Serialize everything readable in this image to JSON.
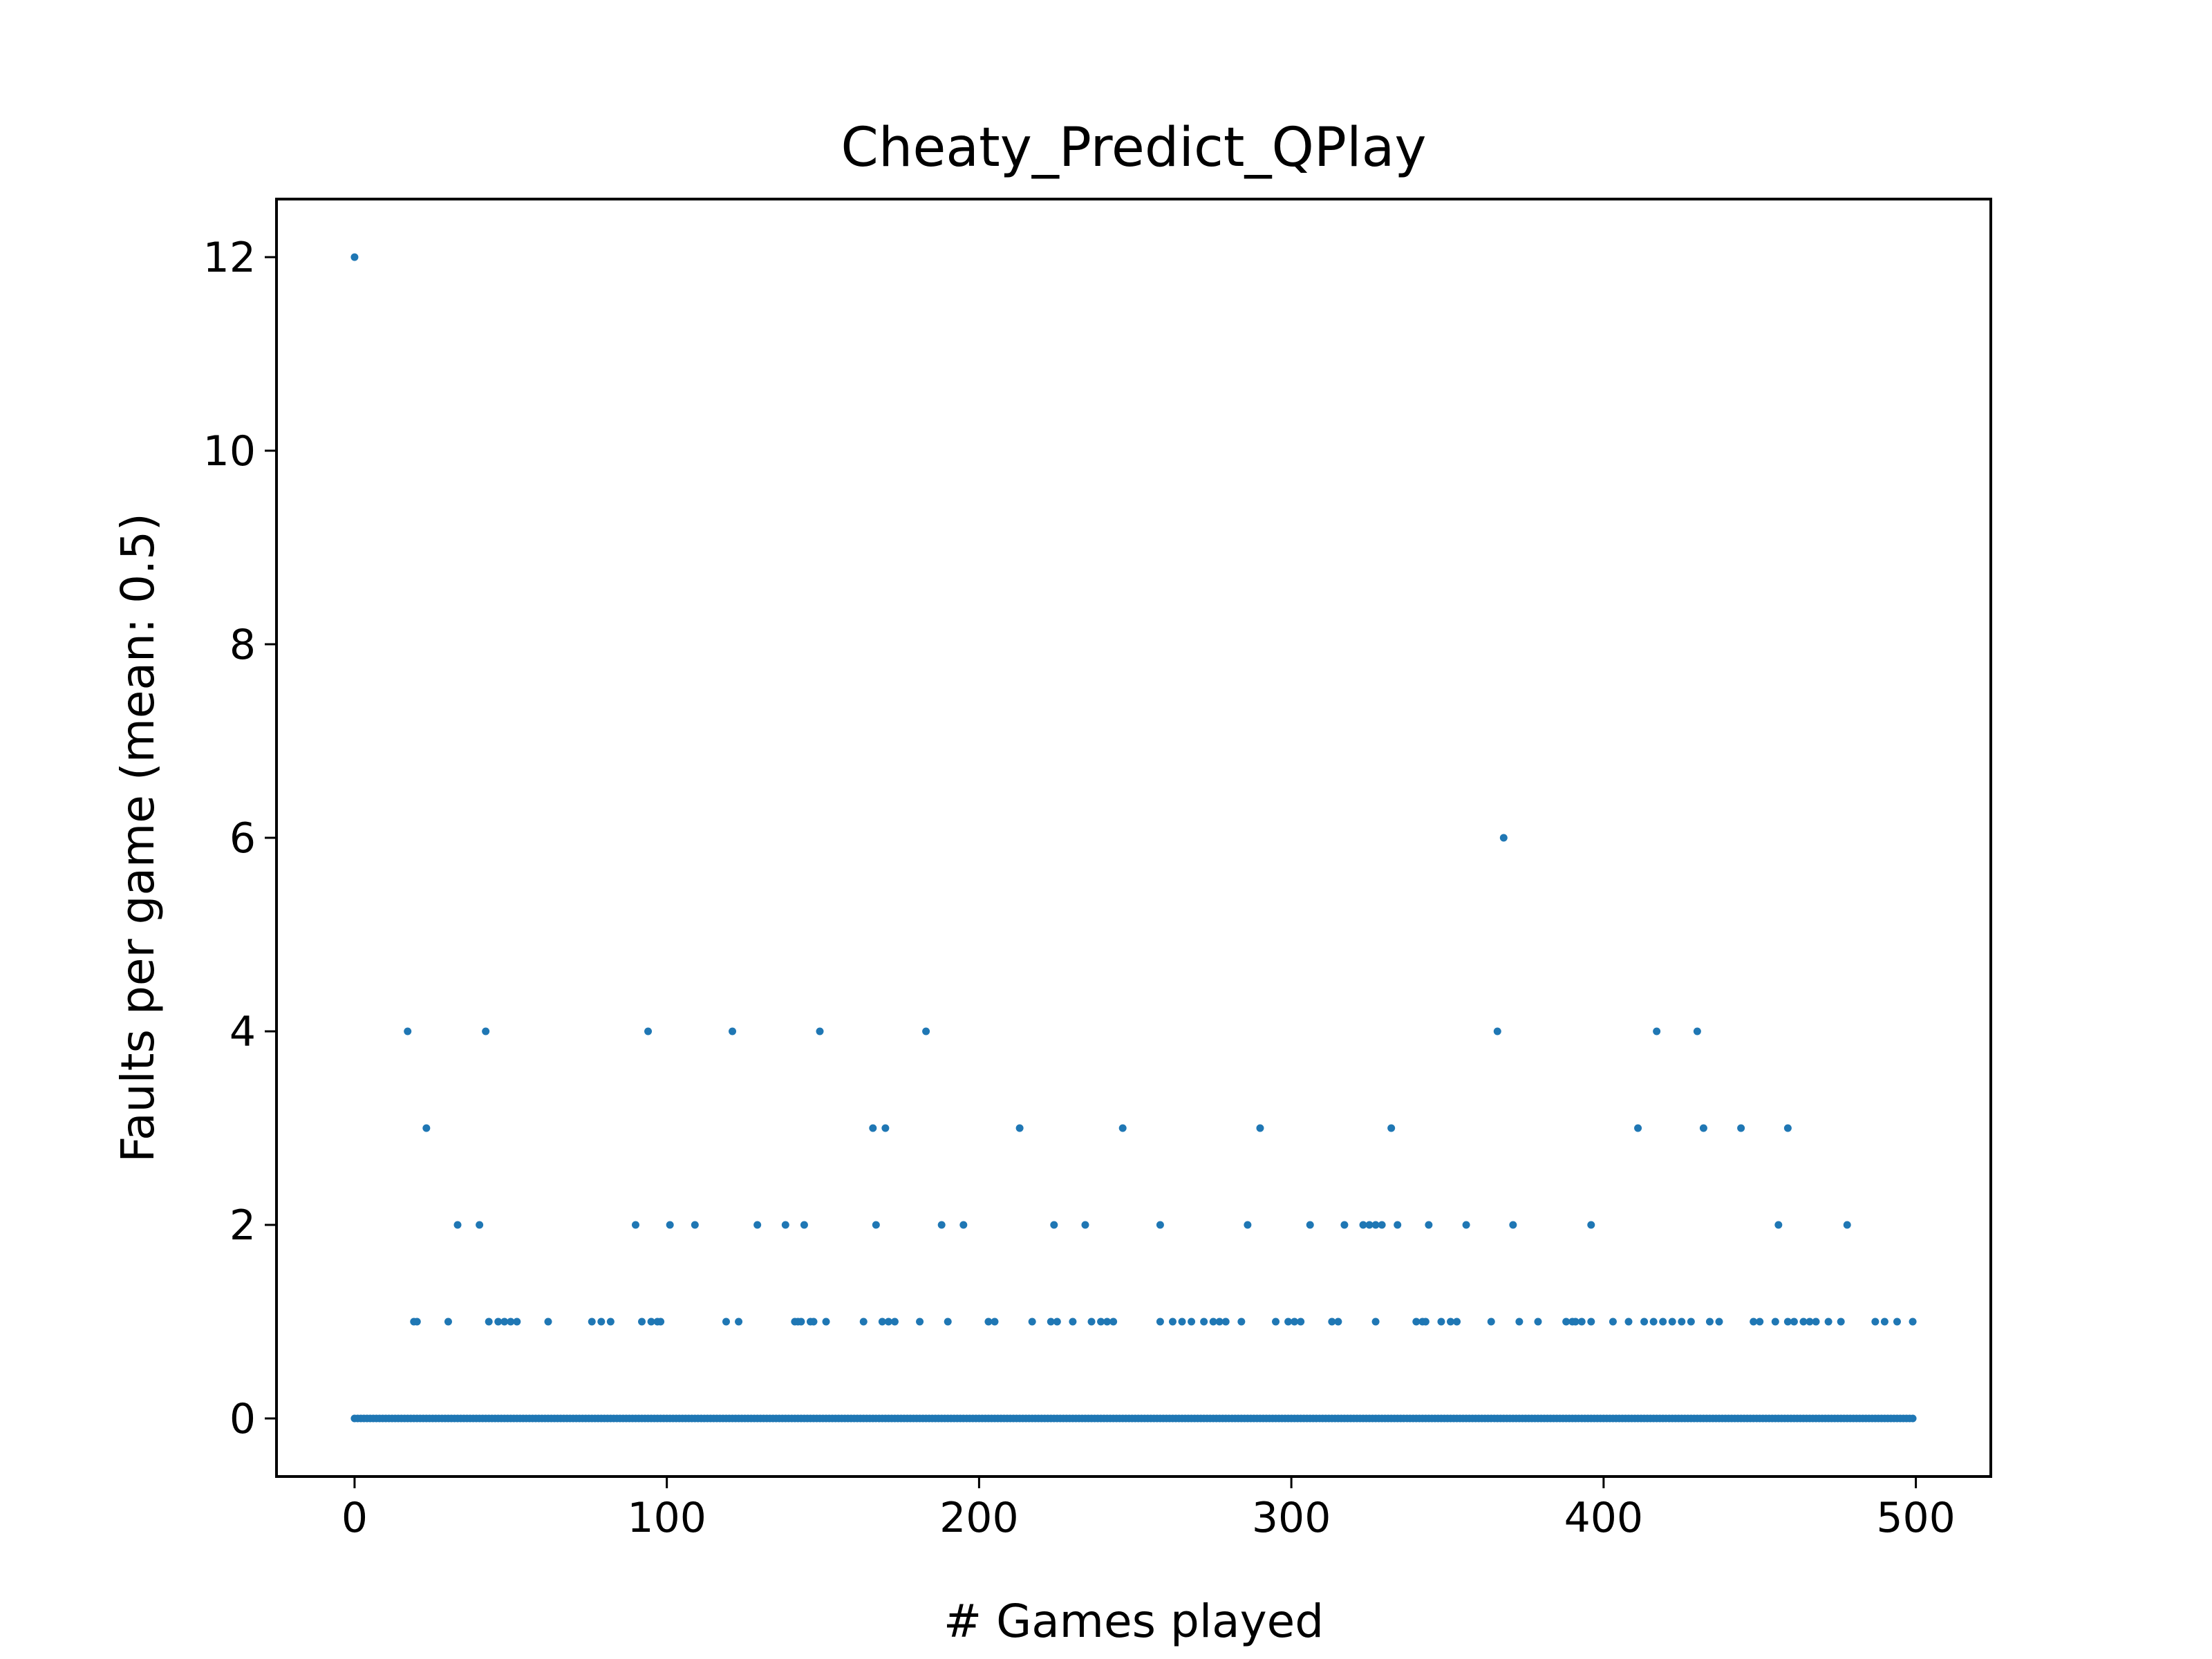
{
  "chart_data": {
    "type": "scatter",
    "title": "Cheaty_Predict_QPlay",
    "xlabel": "# Games played",
    "ylabel": "Faults per game (mean: 0.5)",
    "xlim": [
      -25,
      524
    ],
    "ylim": [
      -0.6,
      12.6
    ],
    "xticks": [
      0,
      100,
      200,
      300,
      400,
      500
    ],
    "yticks": [
      0,
      2,
      4,
      6,
      8,
      10,
      12
    ],
    "grid": false,
    "legend": false,
    "marker_color": "#1f77b4",
    "series": [
      {
        "x": [
          0,
          17,
          23,
          33,
          40,
          42,
          90,
          94,
          101,
          109,
          121,
          129,
          138,
          144,
          149,
          166,
          167,
          170,
          183,
          188,
          195,
          213,
          224,
          234,
          246,
          258,
          286,
          290,
          306,
          317,
          323,
          325,
          327,
          329,
          332,
          334,
          344,
          356,
          366,
          368,
          371,
          396,
          411,
          417,
          430,
          432,
          444,
          456,
          459,
          478,
          19,
          20,
          30,
          43,
          46,
          48,
          50,
          52,
          62,
          76,
          79,
          82,
          92,
          95,
          97,
          98,
          119,
          123,
          141,
          142,
          143,
          146,
          147,
          151,
          163,
          169,
          171,
          173,
          181,
          190,
          203,
          205,
          217,
          223,
          225,
          230,
          236,
          239,
          241,
          243,
          258,
          262,
          265,
          268,
          272,
          275,
          277,
          279,
          284,
          295,
          299,
          301,
          303,
          313,
          315,
          327,
          340,
          342,
          343,
          348,
          351,
          353,
          364,
          373,
          379,
          388,
          390,
          391,
          393,
          396,
          403,
          408,
          413,
          416,
          419,
          422,
          425,
          428,
          434,
          437,
          448,
          450,
          455,
          459,
          461,
          464,
          466,
          468,
          472,
          476,
          487,
          490,
          494,
          499
        ],
        "y": [
          12,
          4,
          3,
          2,
          2,
          4,
          2,
          4,
          2,
          2,
          4,
          2,
          2,
          2,
          4,
          3,
          2,
          3,
          4,
          2,
          2,
          3,
          2,
          2,
          3,
          2,
          2,
          3,
          2,
          2,
          2,
          2,
          2,
          2,
          3,
          2,
          2,
          2,
          4,
          6,
          2,
          2,
          3,
          4,
          4,
          3,
          3,
          2,
          3,
          2,
          1,
          1,
          1,
          1,
          1,
          1,
          1,
          1,
          1,
          1,
          1,
          1,
          1,
          1,
          1,
          1,
          1,
          1,
          1,
          1,
          1,
          1,
          1,
          1,
          1,
          1,
          1,
          1,
          1,
          1,
          1,
          1,
          1,
          1,
          1,
          1,
          1,
          1,
          1,
          1,
          1,
          1,
          1,
          1,
          1,
          1,
          1,
          1,
          1,
          1,
          1,
          1,
          1,
          1,
          1,
          1,
          1,
          1,
          1,
          1,
          1,
          1,
          1,
          1,
          1,
          1,
          1,
          1,
          1,
          1,
          1,
          1,
          1,
          1,
          1,
          1,
          1,
          1,
          1,
          1,
          1,
          1,
          1,
          1,
          1,
          1,
          1,
          1,
          1,
          1,
          1,
          1,
          1,
          1
        ]
      }
    ],
    "zero_fault_games": {
      "value": 0,
      "from": 0,
      "to": 499
    }
  }
}
